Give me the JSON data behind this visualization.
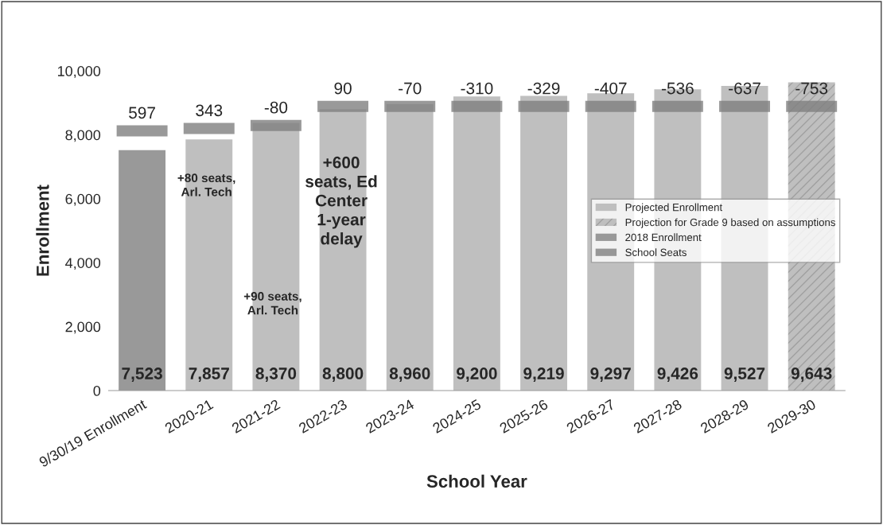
{
  "chart_data": {
    "type": "bar",
    "xlabel": "School Year",
    "ylabel": "Enrollment",
    "categories": [
      "9/30/19 Enrollment",
      "2020-21",
      "2021-22",
      "2022-23",
      "2023-24",
      "2024-25",
      "2025-26",
      "2026-27",
      "2027-28",
      "2028-29",
      "2029-30"
    ],
    "series": [
      {
        "name": "Projected Enrollment",
        "color": "#bfbfbf",
        "values": [
          null,
          7857,
          8370,
          8800,
          8960,
          9200,
          9219,
          9297,
          9426,
          9527,
          null
        ],
        "value_labels": [
          null,
          "7,857",
          "8,370",
          "8,800",
          "8,960",
          "9,200",
          "9,219",
          "9,297",
          "9,426",
          "9,527",
          null
        ]
      },
      {
        "name": "Projection for Grade 9 based on assumptions",
        "color": "#bfbfbf",
        "values": [
          null,
          null,
          null,
          null,
          null,
          null,
          null,
          null,
          null,
          null,
          9643
        ],
        "value_labels": [
          null,
          null,
          null,
          null,
          null,
          null,
          null,
          null,
          null,
          null,
          "9,643"
        ]
      },
      {
        "name": "2018 Enrollment",
        "color": "#999999",
        "values": [
          7523,
          null,
          null,
          null,
          null,
          null,
          null,
          null,
          null,
          null,
          null
        ],
        "value_labels": [
          "7,523",
          null,
          null,
          null,
          null,
          null,
          null,
          null,
          null,
          null,
          null
        ]
      },
      {
        "name": "School Seats",
        "color": "#808080",
        "base": [
          7950,
          8025,
          8115,
          8715,
          8715,
          8715,
          8715,
          8715,
          8715,
          8715,
          8715
        ],
        "values": [
          350,
          350,
          350,
          350,
          350,
          350,
          350,
          350,
          350,
          350,
          350
        ]
      }
    ],
    "ylim": [
      0,
      10000
    ],
    "yticks": [
      {
        "value": 0,
        "label": "0"
      },
      {
        "value": 2000,
        "label": "2,000"
      },
      {
        "value": 4000,
        "label": "4,000"
      },
      {
        "value": 6000,
        "label": "6,000"
      },
      {
        "value": 8000,
        "label": "8,000"
      },
      {
        "value": 10000,
        "label": "10,000"
      }
    ],
    "annotations": [
      "597",
      "343",
      "-80",
      "90",
      "-70",
      "-310",
      "-329",
      "-407",
      "-536",
      "-637",
      "-753",
      "+80 seats,\nArl. Tech",
      "+90 seats,\nArl. Tech",
      "+600\nseats, Ed\nCenter\n1-year\ndelay"
    ],
    "legend": "center right",
    "grid": false
  }
}
